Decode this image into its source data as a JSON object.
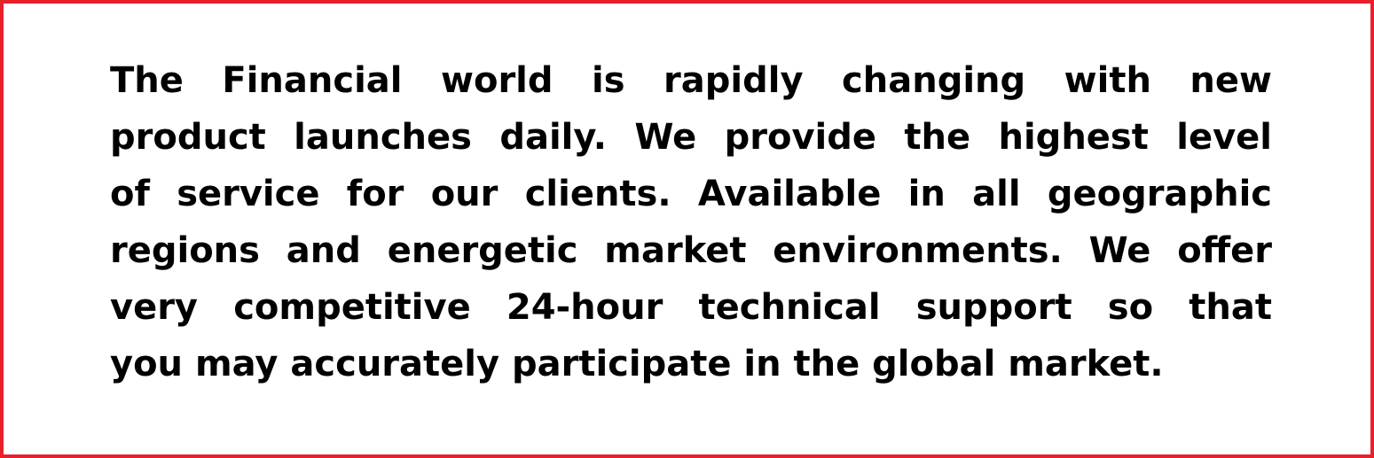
{
  "frame": {
    "border_color": "#e8202a",
    "background": "#ffffff"
  },
  "paragraph": {
    "text_color": "#000000",
    "lines": [
      "The Financial world is rapidly changing with new",
      "product launches daily. We provide the highest level",
      "of service for our clients. Available in all geographic",
      "regions and energetic market environments. We offer",
      "very competitive 24-hour technical support so that",
      "you may accurately participate in the global market."
    ]
  }
}
